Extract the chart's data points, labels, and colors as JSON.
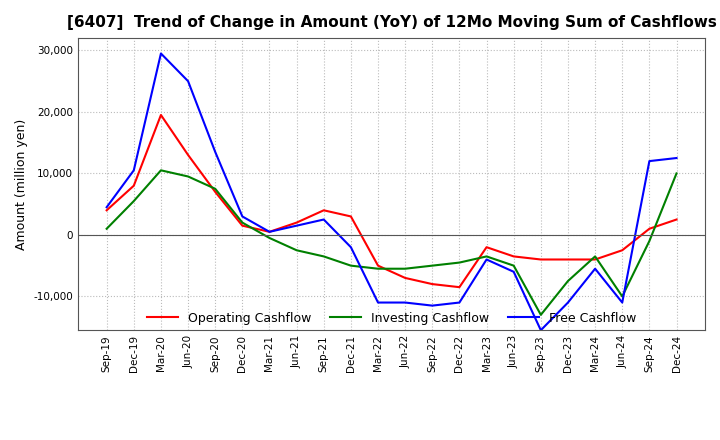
{
  "title": "[6407]  Trend of Change in Amount (YoY) of 12Mo Moving Sum of Cashflows",
  "ylabel": "Amount (million yen)",
  "x_labels": [
    "Sep-19",
    "Dec-19",
    "Mar-20",
    "Jun-20",
    "Sep-20",
    "Dec-20",
    "Mar-21",
    "Jun-21",
    "Sep-21",
    "Dec-21",
    "Mar-22",
    "Jun-22",
    "Sep-22",
    "Dec-22",
    "Mar-23",
    "Jun-23",
    "Sep-23",
    "Dec-23",
    "Mar-24",
    "Jun-24",
    "Sep-24",
    "Dec-24"
  ],
  "operating": [
    4000,
    8000,
    19500,
    13000,
    7000,
    1500,
    500,
    2000,
    4000,
    3000,
    -5000,
    -7000,
    -8000,
    -8500,
    -2000,
    -3500,
    -4000,
    -4000,
    -4000,
    -2500,
    1000,
    2500
  ],
  "investing": [
    1000,
    5500,
    10500,
    9500,
    7500,
    2000,
    -500,
    -2500,
    -3500,
    -5000,
    -5500,
    -5500,
    -5000,
    -4500,
    -3500,
    -5000,
    -13000,
    -7500,
    -3500,
    -10000,
    -1000,
    10000
  ],
  "free": [
    4500,
    10500,
    29500,
    25000,
    13500,
    3000,
    500,
    1500,
    2500,
    -2000,
    -11000,
    -11000,
    -11500,
    -11000,
    -4000,
    -6000,
    -15500,
    -11000,
    -5500,
    -11000,
    12000,
    12500
  ],
  "operating_color": "#ff0000",
  "investing_color": "#008000",
  "free_color": "#0000ff",
  "ylim": [
    -15500,
    32000
  ],
  "yticks": [
    -10000,
    0,
    10000,
    20000,
    30000
  ],
  "background_color": "#ffffff",
  "grid_color": "#bbbbbb",
  "title_fontsize": 11,
  "legend_fontsize": 9
}
